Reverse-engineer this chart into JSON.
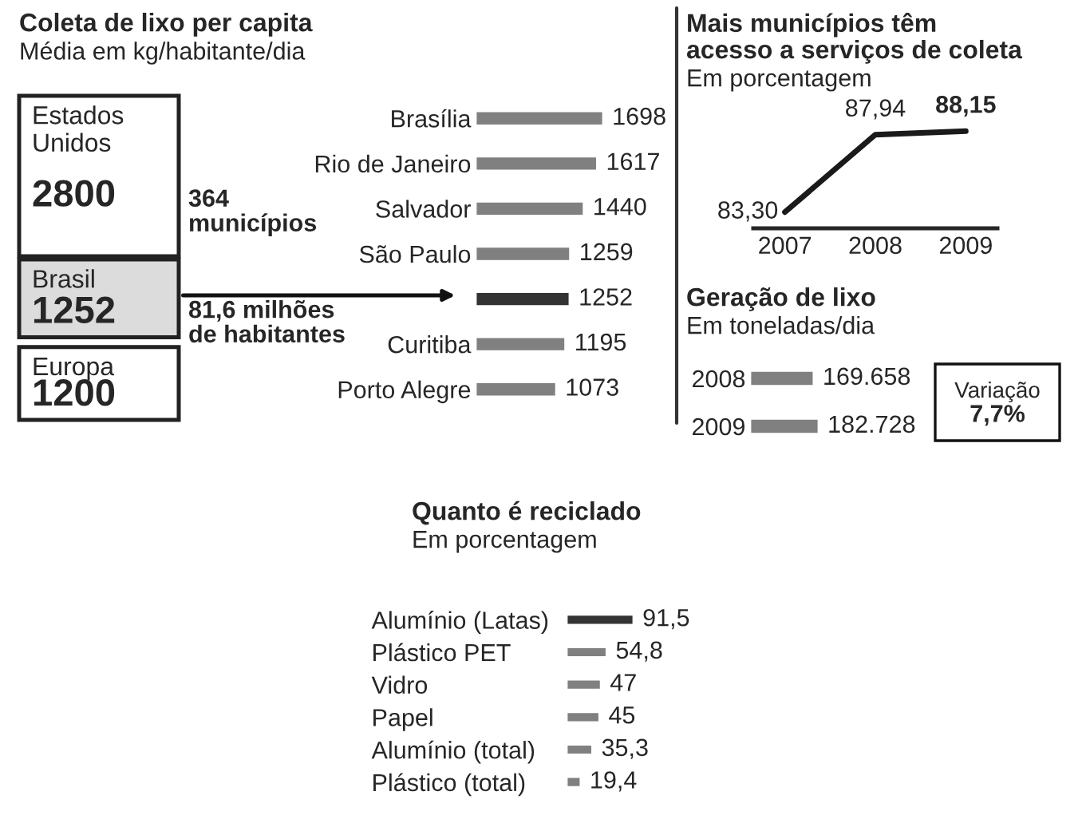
{
  "chart_data": [
    {
      "type": "other",
      "title": "Coleta de lixo per capita",
      "subtitle": "Média em kg/habitante/dia",
      "categories": [
        "Estados Unidos",
        "Brasil",
        "Europa"
      ],
      "values": [
        2800,
        1252,
        1200
      ],
      "value_labels": [
        "2800",
        "1252",
        "1200"
      ],
      "colors": [
        "#ffffff",
        "#dcdcdc",
        "#ffffff"
      ],
      "annotations": [
        "364\nmunicípios",
        "81,6 milhões\nde habitantes"
      ]
    },
    {
      "type": "bar",
      "orientation": "horizontal",
      "categories": [
        "Brasília",
        "Rio de Janeiro",
        "Salvador",
        "São Paulo",
        null,
        "Curitiba",
        "Porto Alegre"
      ],
      "values": [
        1698,
        1617,
        1440,
        1259,
        1252,
        1195,
        1073
      ],
      "colors": [
        "#808080",
        "#808080",
        "#808080",
        "#808080",
        "#333333",
        "#808080",
        "#808080"
      ],
      "data_labels": true
    },
    {
      "type": "line",
      "title": "Mais municípios têm\nacesso a serviços de coleta",
      "subtitle": "Em porcentagem",
      "categories": [
        "2007",
        "2008",
        "2009"
      ],
      "values": [
        83.3,
        87.94,
        88.15
      ],
      "value_labels": [
        "83,30",
        "87,94",
        "88,15"
      ],
      "color": "#1a1a1a"
    },
    {
      "type": "bar",
      "orientation": "horizontal",
      "title": "Geração de lixo",
      "subtitle": "Em toneladas/dia",
      "categories": [
        "2008",
        "2009"
      ],
      "values": [
        169658,
        182728
      ],
      "value_labels": [
        "169.658",
        "182.728"
      ],
      "color": "#808080",
      "annotations": [
        "Variação",
        "7,7%"
      ]
    },
    {
      "type": "bar",
      "orientation": "horizontal",
      "title": "Quanto é reciclado",
      "subtitle": "Em porcentagem",
      "categories": [
        "Alumínio (Latas)",
        "Plástico PET",
        "Vidro",
        "Papel",
        "Alumínio (total)",
        "Plástico (total)"
      ],
      "values": [
        91.5,
        54.8,
        47,
        45,
        35.3,
        19.4
      ],
      "value_labels": [
        "91,5",
        "54,8",
        "47",
        "45",
        "35,3",
        "19,4"
      ],
      "colors": [
        "#333333",
        "#808080",
        "#808080",
        "#808080",
        "#808080",
        "#808080"
      ]
    }
  ]
}
